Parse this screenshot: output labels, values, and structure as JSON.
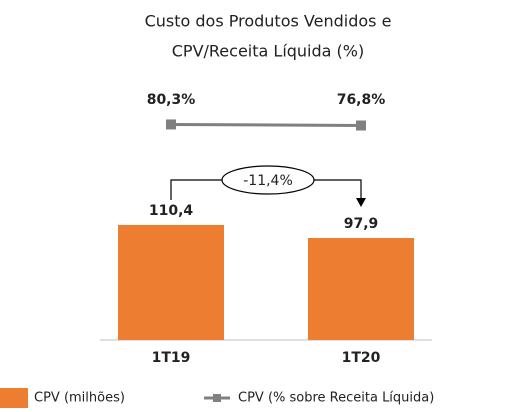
{
  "chart_data": {
    "type": "bar",
    "title": [
      "Custo dos Produtos Vendidos e",
      "CPV/Receita Líquida (%)"
    ],
    "categories": [
      "1T19",
      "1T20"
    ],
    "series": [
      {
        "name": "CPV (milhões)",
        "type": "bar",
        "color": "#ED7D31",
        "values": [
          110.4,
          97.9
        ],
        "value_labels": [
          "110,4",
          "97,9"
        ]
      },
      {
        "name": "CPV (% sobre Receita Líquida)",
        "type": "line",
        "axis": "y2",
        "color": "#808080",
        "values": [
          80.3,
          76.8
        ],
        "value_labels": [
          "80,3%",
          "76,8%"
        ]
      }
    ],
    "annotations": [
      "-11,4%"
    ]
  }
}
